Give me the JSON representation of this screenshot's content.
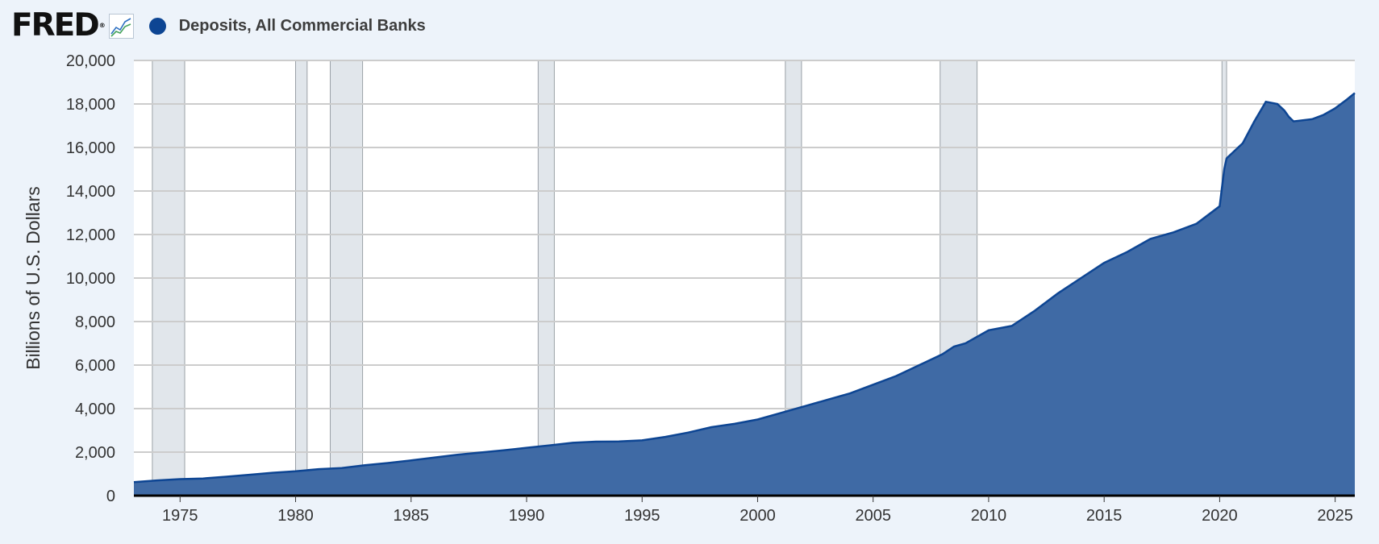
{
  "header": {
    "logo_text": "FRED",
    "logo_reg": "®",
    "series_label": "Deposits, All Commercial Banks"
  },
  "colors": {
    "background": "#edf3fa",
    "plot_background": "#ffffff",
    "series_fill": "#3f6aa5",
    "series_line": "#0d4593",
    "recession": "#e1e6eb",
    "grid": "#cccccc"
  },
  "chart_data": {
    "type": "area",
    "title": "",
    "xlabel": "",
    "ylabel": "Billions of U.S. Dollars",
    "xlim": [
      1973.0,
      2025.85
    ],
    "ylim": [
      0,
      20000
    ],
    "yticks": [
      0,
      2000,
      4000,
      6000,
      8000,
      10000,
      12000,
      14000,
      16000,
      18000,
      20000
    ],
    "ytick_labels": [
      "0",
      "2,000",
      "4,000",
      "6,000",
      "8,000",
      "10,000",
      "12,000",
      "14,000",
      "16,000",
      "18,000",
      "20,000"
    ],
    "xticks": [
      1975,
      1980,
      1985,
      1990,
      1995,
      2000,
      2005,
      2010,
      2015,
      2020,
      2025
    ],
    "xtick_labels": [
      "1975",
      "1980",
      "1985",
      "1990",
      "1995",
      "2000",
      "2005",
      "2010",
      "2015",
      "2020",
      "2025"
    ],
    "grid": true,
    "recessions": [
      [
        1973.8,
        1975.2
      ],
      [
        1980.0,
        1980.5
      ],
      [
        1981.5,
        1982.9
      ],
      [
        1990.5,
        1991.2
      ],
      [
        2001.2,
        2001.9
      ],
      [
        2007.9,
        2009.5
      ],
      [
        2020.1,
        2020.3
      ]
    ],
    "series": [
      {
        "name": "Deposits, All Commercial Banks",
        "x": [
          1973.0,
          1974.0,
          1975.0,
          1976.0,
          1977.0,
          1978.0,
          1979.0,
          1980.0,
          1981.0,
          1982.0,
          1983.0,
          1984.0,
          1985.0,
          1986.0,
          1987.0,
          1988.0,
          1989.0,
          1990.0,
          1991.0,
          1992.0,
          1993.0,
          1994.0,
          1995.0,
          1996.0,
          1997.0,
          1998.0,
          1999.0,
          2000.0,
          2001.0,
          2002.0,
          2003.0,
          2004.0,
          2005.0,
          2006.0,
          2007.0,
          2008.0,
          2008.5,
          2009.0,
          2010.0,
          2011.0,
          2012.0,
          2013.0,
          2014.0,
          2015.0,
          2016.0,
          2017.0,
          2018.0,
          2019.0,
          2020.0,
          2020.2,
          2020.3,
          2020.5,
          2021.0,
          2021.5,
          2022.0,
          2022.5,
          2022.8,
          2023.0,
          2023.2,
          2024.0,
          2024.5,
          2025.0,
          2025.5,
          2025.85
        ],
        "values": [
          620,
          700,
          760,
          790,
          870,
          960,
          1050,
          1120,
          1220,
          1270,
          1400,
          1500,
          1620,
          1750,
          1880,
          1980,
          2080,
          2200,
          2310,
          2430,
          2480,
          2490,
          2540,
          2700,
          2900,
          3150,
          3300,
          3500,
          3800,
          4100,
          4400,
          4700,
          5100,
          5500,
          6000,
          6500,
          6850,
          7000,
          7600,
          7800,
          8500,
          9300,
          10000,
          10700,
          11200,
          11800,
          12100,
          12500,
          13300,
          15000,
          15500,
          15700,
          16200,
          17200,
          18100,
          18000,
          17700,
          17400,
          17200,
          17300,
          17500,
          17800,
          18200,
          18500
        ]
      }
    ]
  }
}
